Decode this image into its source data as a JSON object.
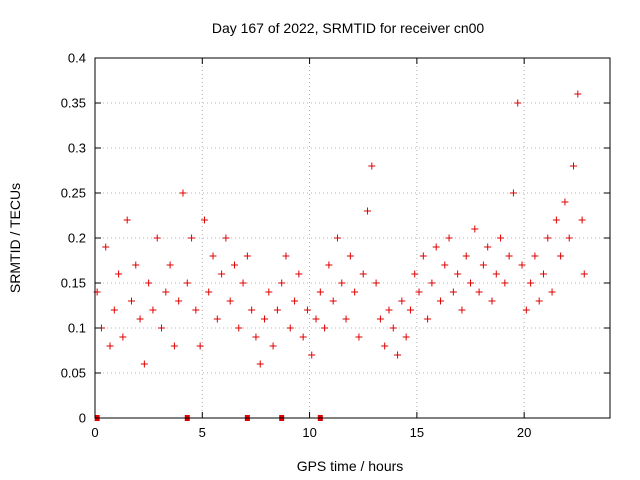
{
  "chart_data": {
    "type": "scatter",
    "title": "Day 167 of 2022, SRMTID for receiver cn00",
    "xlabel": "GPS time / hours",
    "ylabel": "SRMTID / TECUs",
    "xlim": [
      0,
      24
    ],
    "ylim": [
      0,
      0.4
    ],
    "x_ticks": [
      0,
      5,
      10,
      15,
      20
    ],
    "x_tick_labels": [
      "0",
      "5",
      "10",
      "15",
      "20"
    ],
    "y_ticks": [
      0,
      0.05,
      0.1,
      0.15,
      0.2,
      0.25,
      0.3,
      0.35,
      0.4
    ],
    "y_tick_labels": [
      "0",
      "0.05",
      "0.1",
      "0.15",
      "0.2",
      "0.25",
      "0.3",
      "0.35",
      "0.4"
    ],
    "grid": true,
    "marker": "plus",
    "color": "#e00000",
    "zero_markers_x": [
      0.1,
      4.3,
      7.1,
      8.7,
      10.5
    ],
    "series": [
      {
        "name": "SRMTID",
        "points": [
          [
            0.1,
            0.14
          ],
          [
            0.3,
            0.1
          ],
          [
            0.5,
            0.19
          ],
          [
            0.7,
            0.08
          ],
          [
            0.9,
            0.12
          ],
          [
            1.1,
            0.16
          ],
          [
            1.3,
            0.09
          ],
          [
            1.5,
            0.22
          ],
          [
            1.7,
            0.13
          ],
          [
            1.9,
            0.17
          ],
          [
            2.1,
            0.11
          ],
          [
            2.3,
            0.06
          ],
          [
            2.5,
            0.15
          ],
          [
            2.7,
            0.12
          ],
          [
            2.9,
            0.2
          ],
          [
            3.1,
            0.1
          ],
          [
            3.3,
            0.14
          ],
          [
            3.5,
            0.17
          ],
          [
            3.7,
            0.08
          ],
          [
            3.9,
            0.13
          ],
          [
            4.1,
            0.25
          ],
          [
            4.3,
            0.15
          ],
          [
            4.5,
            0.2
          ],
          [
            4.7,
            0.12
          ],
          [
            4.9,
            0.08
          ],
          [
            5.1,
            0.22
          ],
          [
            5.3,
            0.14
          ],
          [
            5.5,
            0.18
          ],
          [
            5.7,
            0.11
          ],
          [
            5.9,
            0.16
          ],
          [
            6.1,
            0.2
          ],
          [
            6.3,
            0.13
          ],
          [
            6.5,
            0.17
          ],
          [
            6.7,
            0.1
          ],
          [
            6.9,
            0.15
          ],
          [
            7.1,
            0.18
          ],
          [
            7.3,
            0.12
          ],
          [
            7.5,
            0.09
          ],
          [
            7.7,
            0.06
          ],
          [
            7.9,
            0.11
          ],
          [
            8.1,
            0.14
          ],
          [
            8.3,
            0.08
          ],
          [
            8.5,
            0.12
          ],
          [
            8.7,
            0.15
          ],
          [
            8.9,
            0.18
          ],
          [
            9.1,
            0.1
          ],
          [
            9.3,
            0.13
          ],
          [
            9.5,
            0.16
          ],
          [
            9.7,
            0.09
          ],
          [
            9.9,
            0.12
          ],
          [
            10.1,
            0.07
          ],
          [
            10.3,
            0.11
          ],
          [
            10.5,
            0.14
          ],
          [
            10.7,
            0.1
          ],
          [
            10.9,
            0.17
          ],
          [
            11.1,
            0.13
          ],
          [
            11.3,
            0.2
          ],
          [
            11.5,
            0.15
          ],
          [
            11.7,
            0.11
          ],
          [
            11.9,
            0.18
          ],
          [
            12.1,
            0.14
          ],
          [
            12.3,
            0.09
          ],
          [
            12.5,
            0.16
          ],
          [
            12.7,
            0.23
          ],
          [
            12.9,
            0.28
          ],
          [
            13.1,
            0.15
          ],
          [
            13.3,
            0.11
          ],
          [
            13.5,
            0.08
          ],
          [
            13.7,
            0.12
          ],
          [
            13.9,
            0.1
          ],
          [
            14.1,
            0.07
          ],
          [
            14.3,
            0.13
          ],
          [
            14.5,
            0.09
          ],
          [
            14.7,
            0.12
          ],
          [
            14.9,
            0.16
          ],
          [
            15.1,
            0.14
          ],
          [
            15.3,
            0.18
          ],
          [
            15.5,
            0.11
          ],
          [
            15.7,
            0.15
          ],
          [
            15.9,
            0.19
          ],
          [
            16.1,
            0.13
          ],
          [
            16.3,
            0.17
          ],
          [
            16.5,
            0.2
          ],
          [
            16.7,
            0.14
          ],
          [
            16.9,
            0.16
          ],
          [
            17.1,
            0.12
          ],
          [
            17.3,
            0.18
          ],
          [
            17.5,
            0.15
          ],
          [
            17.7,
            0.21
          ],
          [
            17.9,
            0.14
          ],
          [
            18.1,
            0.17
          ],
          [
            18.3,
            0.19
          ],
          [
            18.5,
            0.13
          ],
          [
            18.7,
            0.16
          ],
          [
            18.9,
            0.2
          ],
          [
            19.1,
            0.15
          ],
          [
            19.3,
            0.18
          ],
          [
            19.5,
            0.25
          ],
          [
            19.7,
            0.35
          ],
          [
            19.9,
            0.17
          ],
          [
            20.1,
            0.12
          ],
          [
            20.3,
            0.15
          ],
          [
            20.5,
            0.18
          ],
          [
            20.7,
            0.13
          ],
          [
            20.9,
            0.16
          ],
          [
            21.1,
            0.2
          ],
          [
            21.3,
            0.14
          ],
          [
            21.5,
            0.22
          ],
          [
            21.7,
            0.18
          ],
          [
            21.9,
            0.24
          ],
          [
            22.1,
            0.2
          ],
          [
            22.3,
            0.28
          ],
          [
            22.5,
            0.36
          ],
          [
            22.7,
            0.22
          ],
          [
            22.8,
            0.16
          ]
        ]
      }
    ]
  }
}
